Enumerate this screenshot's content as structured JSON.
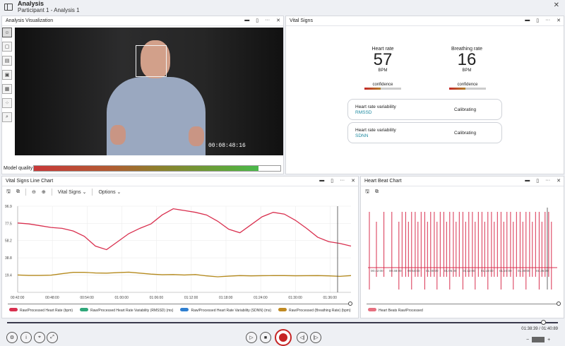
{
  "app": {
    "title": "Analysis",
    "subtitle": "Participant 1 - Analysis 1"
  },
  "viz": {
    "title": "Analysis Visualization",
    "timecode": "00:08:48:16",
    "model_quality_label": "Model quality",
    "model_quality_value": 0.91
  },
  "vitals": {
    "title": "Vital Signs",
    "heart_rate": {
      "label": "Heart rate",
      "value": "57",
      "unit": "BPM",
      "confidence_label": "confidence",
      "confidence": 0.45
    },
    "breathing_rate": {
      "label": "Breathing rate",
      "value": "16",
      "unit": "BPM",
      "confidence_label": "confidence",
      "confidence": 0.45
    },
    "hrv": [
      {
        "label": "Heart rate variability",
        "metric": "RMSSD",
        "status": "Calibrating"
      },
      {
        "label": "Heart rate variability",
        "metric": "SDNN",
        "status": "Calibrating"
      }
    ]
  },
  "line_chart": {
    "title": "Vital Signs Line Chart",
    "menu_vitals": "Vital Signs",
    "menu_options": "Options",
    "legend": [
      {
        "label": "Raw/Processed Heart Rate (bpm)",
        "color": "#d9304f"
      },
      {
        "label": "Raw/Processed Heart Rate Variability (RMSSD) (ms)",
        "color": "#2fa77a"
      },
      {
        "label": "Raw/Processed Heart Rate Variability (SDNN) (ms)",
        "color": "#2f7fd0"
      },
      {
        "label": "Raw/Processed (Breathing Rate) (bpm)",
        "color": "#c08a22"
      }
    ]
  },
  "beat_chart": {
    "title": "Heart Beat Chart",
    "legend": [
      {
        "label": "Heart Beats Raw/Processed",
        "color": "#d9304f"
      }
    ]
  },
  "chart_data": [
    {
      "type": "line",
      "xlabel": "",
      "ylabel": "",
      "ylim": [
        0,
        96.9
      ],
      "y_ticks": [
        "96.9",
        "77.5",
        "58.2",
        "38.8",
        "19.4"
      ],
      "x_ticks": [
        "00:42:00",
        "00:48:00",
        "00:54:00",
        "01:00:00",
        "01:06:00",
        "01:12:00",
        "01:18:00",
        "01:24:00",
        "01:30:00",
        "01:36:00"
      ],
      "x": [
        0,
        2,
        4,
        6,
        8,
        10,
        12,
        14,
        16,
        18,
        20,
        22,
        24,
        26,
        28,
        30,
        32,
        34,
        36,
        38,
        40,
        42,
        44,
        46,
        48,
        50,
        52,
        54,
        56,
        58,
        60
      ],
      "series": [
        {
          "name": "Raw/Processed Heart Rate (bpm)",
          "color": "#d9304f",
          "values": [
            78,
            77,
            75,
            73,
            72,
            69,
            63,
            52,
            48,
            57,
            66,
            72,
            77,
            87,
            94,
            92,
            90,
            87,
            80,
            71,
            67,
            76,
            85,
            90,
            88,
            81,
            72,
            62,
            57,
            55,
            52
          ]
        },
        {
          "name": "Raw/Processed (Breathing Rate) (bpm)",
          "color": "#b58a1d",
          "values": [
            19.5,
            19,
            19,
            19.3,
            21,
            22.5,
            22.5,
            21.8,
            21.6,
            22.2,
            22.7,
            21.6,
            20.5,
            19.8,
            20,
            19.5,
            20,
            18.5,
            17.5,
            18.2,
            18.8,
            18.5,
            18.7,
            18.8,
            18.8,
            18.6,
            18.7,
            18.8,
            18.5,
            18,
            18.8
          ]
        }
      ]
    },
    {
      "type": "bar",
      "x_ticks": [
        "00:42:00",
        "00:48:00",
        "00:54:00",
        "01:00:00",
        "01:06:00",
        "01:12:00",
        "01:18:00",
        "01:24:00",
        "01:30:00",
        "01:36:00"
      ],
      "series": [
        {
          "name": "Heart Beats Raw/Processed",
          "color": "#d9304f"
        }
      ]
    }
  ],
  "playback": {
    "time": "01:38:39 / 01:40:89"
  }
}
